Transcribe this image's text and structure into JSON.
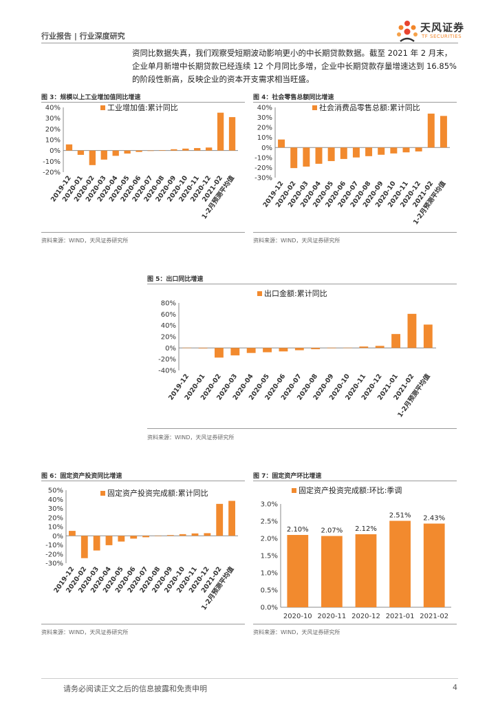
{
  "header": {
    "title": "行业报告 | 行业深度研究",
    "logo_cn": "天风证券",
    "logo_en": "TF SECURITIES"
  },
  "paragraph": {
    "line1": "资同比数据失真，我们观察受短期波动影响更小的中长期贷款数据。截至 2021 年 2 月末，",
    "line2": "企业单月新增中长期贷款已经连续 12 个月同比多增，企业中长期贷款存量增速达到 16.85%",
    "line3": "的阶段性新高，反映企业的资本开支需求相当旺盛。"
  },
  "figures": {
    "fig3": {
      "title": "图 3：规模以上工业增加值同比增速",
      "source": "资料来源：WIND，天风证券研究所"
    },
    "fig4": {
      "title": "图 4：社会零售总额同比增速",
      "source": "资料来源：WIND，天风证券研究所"
    },
    "fig5": {
      "title": "图 5：出口同比增速",
      "source": "资料来源：WIND，天风证券研究所"
    },
    "fig6": {
      "title": "图 6：固定资产投资同比增速",
      "source": "资料来源：WIND，天风证券研究所"
    },
    "fig7": {
      "title": "图 7：固定资产环比增速",
      "source": "资料来源：WIND，天风证券研究所"
    }
  },
  "footer": {
    "disclaimer": "请务必阅读正文之后的信息披露和免责申明",
    "page": "4"
  },
  "colors": {
    "bar": "#F28A2E",
    "axis": "#888888"
  },
  "chart_data": [
    {
      "id": "fig3",
      "type": "bar",
      "legend": "工业增加值:累计同比",
      "categories": [
        "2019-12",
        "2020-01",
        "2020-02",
        "2020-03",
        "2020-04",
        "2020-05",
        "2020-06",
        "2020-07",
        "2020-08",
        "2020-09",
        "2020-10",
        "2020-11",
        "2020-12",
        "2021-02",
        "1-2月预测平均值"
      ],
      "values": [
        5.7,
        -4.0,
        -13.5,
        -8.4,
        -4.9,
        -2.8,
        -1.3,
        -0.4,
        0.4,
        1.2,
        1.8,
        2.3,
        2.8,
        35.1,
        31.0
      ],
      "ylim": [
        -20,
        40
      ],
      "ytick_step": 10,
      "percent": true,
      "decimals": 0
    },
    {
      "id": "fig4",
      "type": "bar",
      "legend": "社会消费品零售总额:累计同比",
      "categories": [
        "2019-12",
        "2020-02",
        "2020-03",
        "2020-04",
        "2020-05",
        "2020-06",
        "2020-07",
        "2020-08",
        "2020-09",
        "2020-10",
        "2020-11",
        "2020-12",
        "2021-02",
        "1-2月预测平均值"
      ],
      "values": [
        8.0,
        -20.5,
        -19.0,
        -16.2,
        -13.5,
        -11.4,
        -9.9,
        -8.6,
        -7.2,
        -5.9,
        -4.8,
        -3.9,
        33.8,
        31.5
      ],
      "ylim": [
        -30,
        40
      ],
      "ytick_step": 10,
      "percent": true,
      "decimals": 0
    },
    {
      "id": "fig5",
      "type": "bar",
      "legend": "出口金额:累计同比",
      "categories": [
        "2019-12",
        "2020-01",
        "2020-02",
        "2020-03",
        "2020-04",
        "2020-05",
        "2020-06",
        "2020-07",
        "2020-08",
        "2020-09",
        "2020-10",
        "2020-11",
        "2020-12",
        "2021-01",
        "2021-02",
        "1-2月预测平均值"
      ],
      "values": [
        0.5,
        -1.0,
        -17.2,
        -13.3,
        -9.0,
        -7.7,
        -6.2,
        -4.1,
        -2.3,
        -0.8,
        0.5,
        2.5,
        3.6,
        24.7,
        60.6,
        41.5
      ],
      "ylim": [
        -40,
        80
      ],
      "ytick_step": 20,
      "percent": true,
      "decimals": 0
    },
    {
      "id": "fig6",
      "type": "bar",
      "legend": "固定资产投资完成额:累计同比",
      "categories": [
        "2019-12",
        "2020-02",
        "2020-03",
        "2020-04",
        "2020-05",
        "2020-06",
        "2020-07",
        "2020-08",
        "2020-09",
        "2020-10",
        "2020-11",
        "2020-12",
        "2021-02",
        "1-2月预测平均值"
      ],
      "values": [
        5.4,
        -24.5,
        -16.1,
        -10.3,
        -6.3,
        -3.1,
        -1.6,
        -0.3,
        0.8,
        1.8,
        2.6,
        2.9,
        35.0,
        38.3
      ],
      "ylim": [
        -30,
        50
      ],
      "ytick_step": 10,
      "percent": true,
      "decimals": 0
    },
    {
      "id": "fig7",
      "type": "bar",
      "legend": "固定资产投资完成额:环比:季调",
      "categories": [
        "2020-10",
        "2020-11",
        "2020-12",
        "2021-01",
        "2021-02"
      ],
      "values": [
        2.1,
        2.07,
        2.12,
        2.51,
        2.43
      ],
      "data_labels": [
        "2.10%",
        "2.07%",
        "2.12%",
        "2.51%",
        "2.43%"
      ],
      "ylim": [
        0,
        3.0
      ],
      "ytick_step": 0.5,
      "percent": true,
      "decimals": 1
    }
  ]
}
